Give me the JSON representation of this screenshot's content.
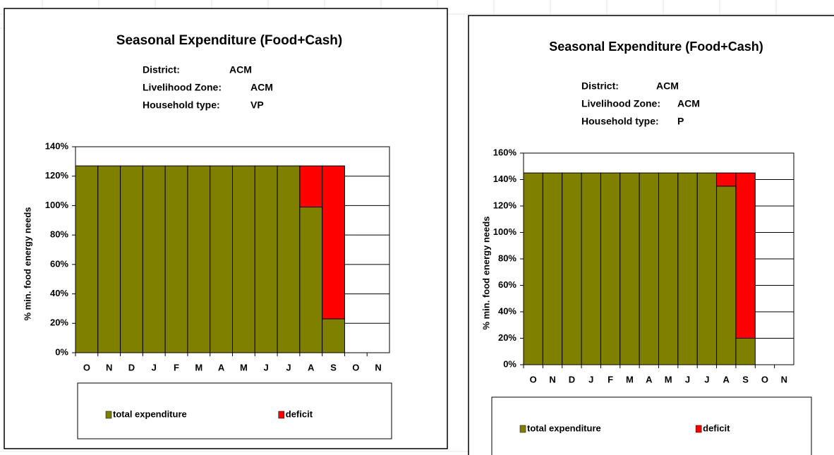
{
  "chart_data": [
    {
      "type": "bar",
      "stacked": true,
      "title": "Seasonal Expenditure (Food+Cash)",
      "info": [
        {
          "label": "District:",
          "value": "ACM"
        },
        {
          "label": "Livelihood Zone:",
          "value": "ACM"
        },
        {
          "label": "Household type:",
          "value": "VP"
        }
      ],
      "ylabel": "% min. food energy needs",
      "categories": [
        "O",
        "N",
        "D",
        "J",
        "F",
        "M",
        "A",
        "M",
        "J",
        "J",
        "A",
        "S",
        "O",
        "N"
      ],
      "series": [
        {
          "name": "total expenditure",
          "color": "#808000",
          "values": [
            127,
            127,
            127,
            127,
            127,
            127,
            127,
            127,
            127,
            127,
            99,
            23,
            0,
            0
          ]
        },
        {
          "name": "deficit",
          "color": "#ff0000",
          "values": [
            0,
            0,
            0,
            0,
            0,
            0,
            0,
            0,
            0,
            0,
            28,
            104,
            0,
            0
          ]
        }
      ],
      "ylim": [
        0,
        140
      ],
      "yticks": [
        {
          "value": 0,
          "label": "0%"
        },
        {
          "value": 20,
          "label": "20%"
        },
        {
          "value": 40,
          "label": "40%"
        },
        {
          "value": 60,
          "label": "60%"
        },
        {
          "value": 80,
          "label": "80%"
        },
        {
          "value": 100,
          "label": "100%"
        },
        {
          "value": 120,
          "label": "120%"
        },
        {
          "value": 140,
          "label": "140%"
        }
      ],
      "grid": true
    },
    {
      "type": "bar",
      "stacked": true,
      "title": "Seasonal Expenditure (Food+Cash)",
      "info": [
        {
          "label": "District:",
          "value": "ACM"
        },
        {
          "label": "Livelihood Zone:",
          "value": "ACM"
        },
        {
          "label": "Household type:",
          "value": "P"
        }
      ],
      "ylabel": "% min. food energy needs",
      "categories": [
        "O",
        "N",
        "D",
        "J",
        "F",
        "M",
        "A",
        "M",
        "J",
        "J",
        "A",
        "S",
        "O",
        "N"
      ],
      "series": [
        {
          "name": "total expenditure",
          "color": "#808000",
          "values": [
            145,
            145,
            145,
            145,
            145,
            145,
            145,
            145,
            145,
            145,
            135,
            20,
            0,
            0
          ]
        },
        {
          "name": "deficit",
          "color": "#ff0000",
          "values": [
            0,
            0,
            0,
            0,
            0,
            0,
            0,
            0,
            0,
            0,
            10,
            125,
            0,
            0
          ]
        }
      ],
      "ylim": [
        0,
        160
      ],
      "yticks": [
        {
          "value": 0,
          "label": "0%"
        },
        {
          "value": 20,
          "label": "20%"
        },
        {
          "value": 40,
          "label": "40%"
        },
        {
          "value": 60,
          "label": "60%"
        },
        {
          "value": 80,
          "label": "80%"
        },
        {
          "value": 100,
          "label": "100%"
        },
        {
          "value": 120,
          "label": "120%"
        },
        {
          "value": 140,
          "label": "140%"
        },
        {
          "value": 160,
          "label": "160%"
        }
      ],
      "grid": true
    }
  ]
}
